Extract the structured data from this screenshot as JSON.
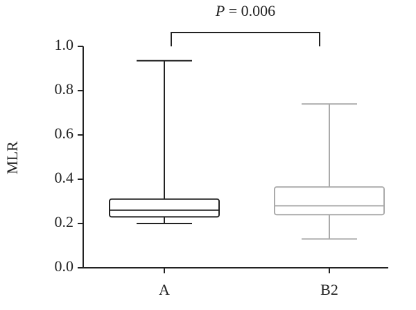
{
  "chart_data": {
    "type": "box",
    "ylabel": "MLR",
    "annotation": [
      "P",
      "= 0.006"
    ],
    "categories": [
      "A",
      "B2"
    ],
    "boxes": [
      {
        "color": "#222222",
        "min": 0.2,
        "q1": 0.23,
        "median": 0.26,
        "q3": 0.31,
        "max": 0.935
      },
      {
        "color": "#aaaaaa",
        "min": 0.13,
        "q1": 0.24,
        "median": 0.28,
        "q3": 0.365,
        "max": 0.74
      }
    ],
    "ylim": [
      0,
      1
    ],
    "yticks": [
      {
        "value": 0,
        "label": "0.0"
      },
      0.2,
      0.4,
      0.6,
      0.8,
      {
        "value": 1,
        "label": "1.0"
      }
    ]
  }
}
